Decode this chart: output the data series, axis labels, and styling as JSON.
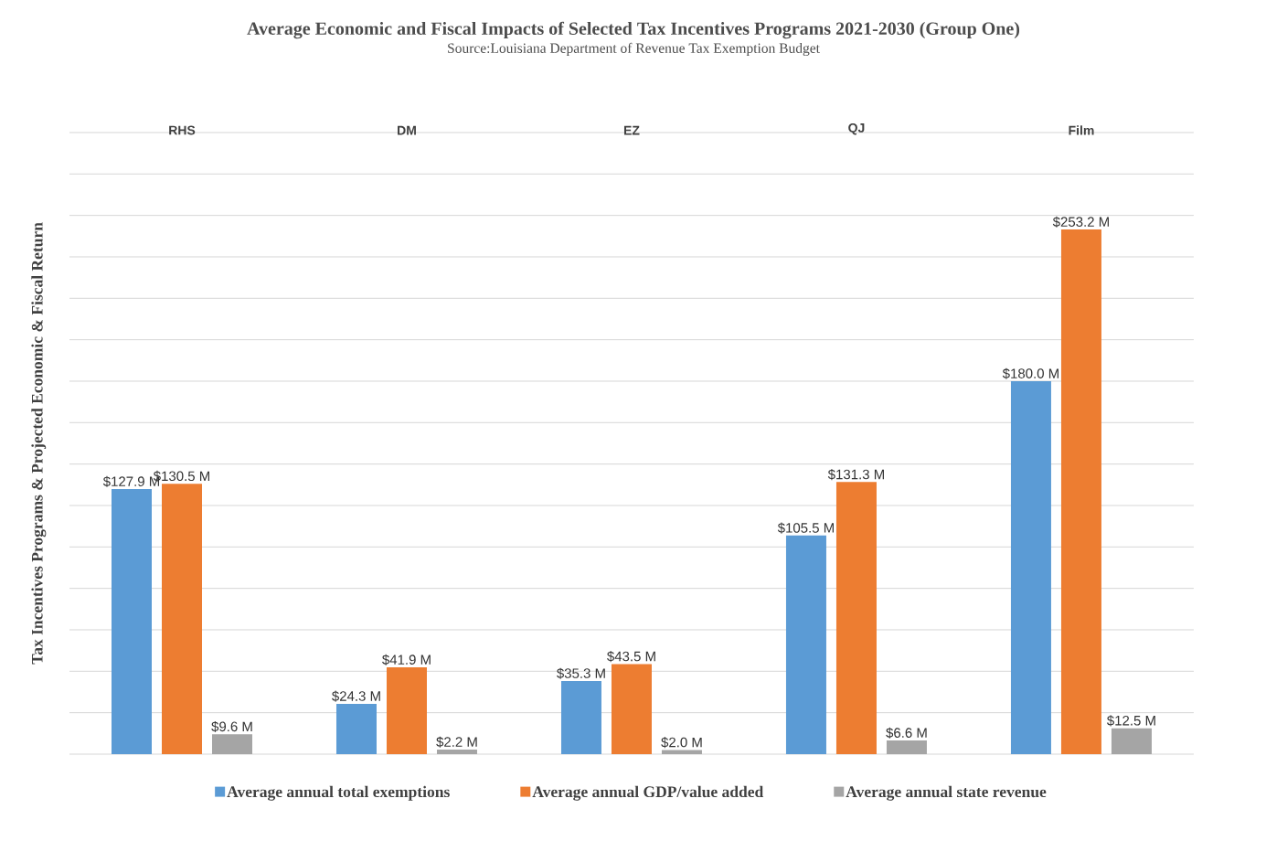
{
  "chart_data": {
    "type": "bar",
    "title": "Average Economic and Fiscal Impacts of Selected Tax Incentives Programs 2021-2030 (Group One)",
    "subtitle": "Source:Louisiana Department of Revenue Tax Exemption Budget",
    "ylabel": "Tax Incentives Programs & Projected Economic & Fiscal Return",
    "categories": [
      "RHS",
      "DM",
      "EZ",
      "QJ",
      "Film"
    ],
    "series": [
      {
        "name": "Average annual total exemptions",
        "color": "#5b9bd5",
        "values": [
          127.9,
          24.3,
          35.3,
          105.5,
          180.0
        ],
        "value_labels": [
          "$127.9 M",
          "$24.3 M",
          "$35.3 M",
          "$105.5 M",
          "$180.0 M"
        ]
      },
      {
        "name": "Average annual GDP/value added",
        "color": "#ed7d31",
        "values": [
          130.5,
          41.9,
          43.5,
          131.3,
          253.2
        ],
        "value_labels": [
          "$130.5 M",
          "$41.9 M",
          "$43.5 M",
          "$131.3 M",
          "$253.2 M"
        ]
      },
      {
        "name": "Average annual state revenue",
        "color": "#a5a5a5",
        "values": [
          9.6,
          2.2,
          2.0,
          6.6,
          12.5
        ],
        "value_labels": [
          "$9.6 M",
          "$2.2 M",
          "$2.0 M",
          "$6.6 M",
          "$12.5 M"
        ]
      }
    ],
    "ylim": [
      0,
      300
    ],
    "grid": "y",
    "legend": "bottom",
    "tick_labels": "x"
  }
}
